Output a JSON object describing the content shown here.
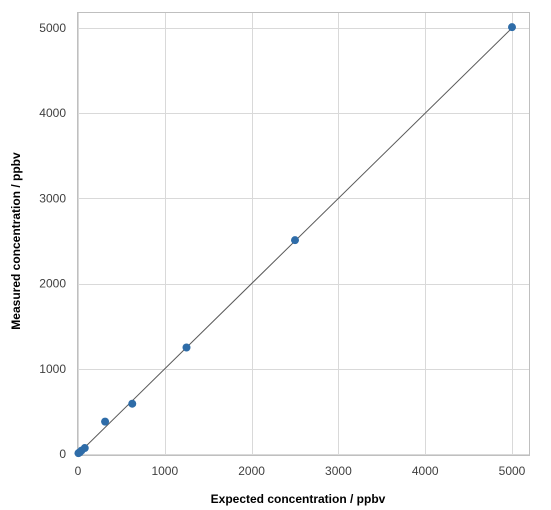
{
  "chart_data": {
    "type": "scatter",
    "title": "",
    "xlabel": "Expected concentration / ppbv",
    "ylabel": "Measured concentration / ppbv",
    "xlim": [
      0,
      5000
    ],
    "ylim": [
      0,
      5000
    ],
    "x_ticks": [
      0,
      1000,
      2000,
      3000,
      4000,
      5000
    ],
    "y_ticks": [
      0,
      1000,
      2000,
      3000,
      4000,
      5000
    ],
    "grid": true,
    "legend": "none",
    "series": [
      {
        "color": "#2e6ca8",
        "points": [
          {
            "x": 5,
            "y": 10
          },
          {
            "x": 20,
            "y": 20
          },
          {
            "x": 40,
            "y": 40
          },
          {
            "x": 78,
            "y": 70
          },
          {
            "x": 312,
            "y": 380
          },
          {
            "x": 625,
            "y": 590
          },
          {
            "x": 1250,
            "y": 1250
          },
          {
            "x": 2500,
            "y": 2510
          },
          {
            "x": 5000,
            "y": 5010
          }
        ]
      }
    ],
    "reference_line": {
      "from": [
        0,
        0
      ],
      "to": [
        5000,
        5000
      ],
      "color": "#595959"
    }
  },
  "colors": {
    "grid": "#d9d9d9",
    "frame": "#bfbfbf",
    "marker": "#2e6ca8",
    "line": "#595959"
  }
}
